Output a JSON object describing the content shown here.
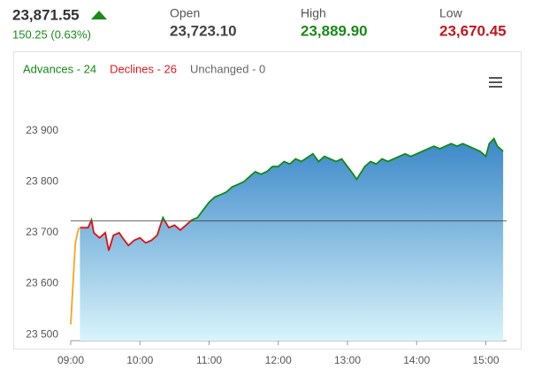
{
  "header": {
    "price": "23,871.55",
    "change": "150.25 (0.63%)",
    "open_label": "Open",
    "open": "23,723.10",
    "open_value": 23723.1,
    "high_label": "High",
    "high": "23,889.90",
    "low_label": "Low",
    "low": "23,670.45"
  },
  "chart_data": {
    "type": "line",
    "legend_items": [
      {
        "text": "Advances - 24",
        "color": "#118a11"
      },
      {
        "text": "Declines - 26",
        "color": "#d71920"
      },
      {
        "text": "Unchanged - 0",
        "color": "#666666"
      }
    ],
    "color_above": "#118a11",
    "color_below": "#e01010",
    "preopen": {
      "color": "#f5a623",
      "x": [
        "09:00",
        "09:02",
        "09:04",
        "09:07"
      ],
      "values": [
        23520,
        23600,
        23680,
        23710
      ]
    },
    "x": [
      "09:08",
      "09:15",
      "09:18",
      "09:20",
      "09:25",
      "09:30",
      "09:33",
      "09:37",
      "09:42",
      "09:45",
      "09:50",
      "09:55",
      "10:00",
      "10:05",
      "10:10",
      "10:15",
      "10:20",
      "10:25",
      "10:30",
      "10:35",
      "10:40",
      "10:45",
      "10:50",
      "10:55",
      "11:00",
      "11:05",
      "11:10",
      "11:15",
      "11:20",
      "11:25",
      "11:30",
      "11:35",
      "11:40",
      "11:45",
      "11:50",
      "11:55",
      "12:00",
      "12:05",
      "12:10",
      "12:15",
      "12:20",
      "12:30",
      "12:35",
      "12:40",
      "12:45",
      "12:50",
      "12:55",
      "13:00",
      "13:05",
      "13:08",
      "13:15",
      "13:20",
      "13:25",
      "13:30",
      "13:35",
      "13:40",
      "13:45",
      "13:50",
      "13:55",
      "14:00",
      "14:05",
      "14:10",
      "14:15",
      "14:20",
      "14:25",
      "14:30",
      "14:35",
      "14:40",
      "14:45",
      "14:50",
      "14:55",
      "15:00",
      "15:03",
      "15:07",
      "15:10",
      "15:15"
    ],
    "values": [
      23710,
      23710,
      23725,
      23700,
      23690,
      23700,
      23665,
      23695,
      23700,
      23690,
      23675,
      23685,
      23690,
      23680,
      23685,
      23695,
      23730,
      23710,
      23715,
      23705,
      23715,
      23725,
      23730,
      23745,
      23760,
      23770,
      23775,
      23780,
      23790,
      23795,
      23800,
      23810,
      23820,
      23815,
      23820,
      23830,
      23830,
      23840,
      23835,
      23845,
      23840,
      23855,
      23840,
      23850,
      23845,
      23840,
      23845,
      23830,
      23815,
      23805,
      23830,
      23840,
      23835,
      23845,
      23840,
      23845,
      23850,
      23855,
      23850,
      23855,
      23860,
      23865,
      23870,
      23865,
      23870,
      23875,
      23870,
      23875,
      23870,
      23865,
      23860,
      23850,
      23875,
      23885,
      23870,
      23860
    ],
    "xlim": [
      "09:00",
      "15:18"
    ],
    "xticks": [
      "09:00",
      "10:00",
      "11:00",
      "12:00",
      "13:00",
      "14:00",
      "15:00"
    ],
    "ylim": [
      23488,
      23992
    ],
    "yticks": [
      {
        "value": 23500,
        "label": "23 500"
      },
      {
        "value": 23600,
        "label": "23 600"
      },
      {
        "value": 23700,
        "label": "23 700"
      },
      {
        "value": 23800,
        "label": "23 800"
      },
      {
        "value": 23900,
        "label": "23 900"
      }
    ]
  }
}
